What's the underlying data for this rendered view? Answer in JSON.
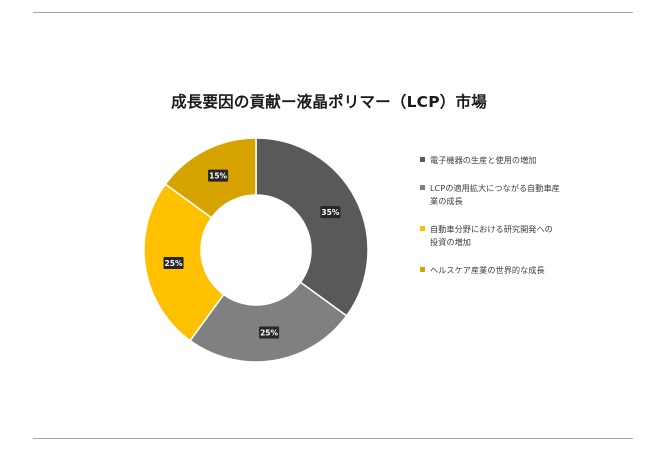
{
  "title": "成長要因の貢献ー液晶ポリマー（LCP）市場",
  "chart_data": {
    "type": "pie",
    "donut": true,
    "title": "成長要因の貢献ー液晶ポリマー（LCP）市場",
    "legend_position": "right",
    "series": [
      {
        "name": "電子機器の生産と使用の増加",
        "value": 35,
        "label": "35%",
        "color": "#595959"
      },
      {
        "name": "LCPの適用拡大につながる自動車産業の成長",
        "value": 25,
        "label": "25%",
        "color": "#808080"
      },
      {
        "name": "自動車分野における研究開発への投資の増加",
        "value": 25,
        "label": "25%",
        "color": "#ffc000"
      },
      {
        "name": "ヘルスケア産業の世界的な成長",
        "value": 15,
        "label": "15%",
        "color": "#d6a300"
      }
    ]
  }
}
